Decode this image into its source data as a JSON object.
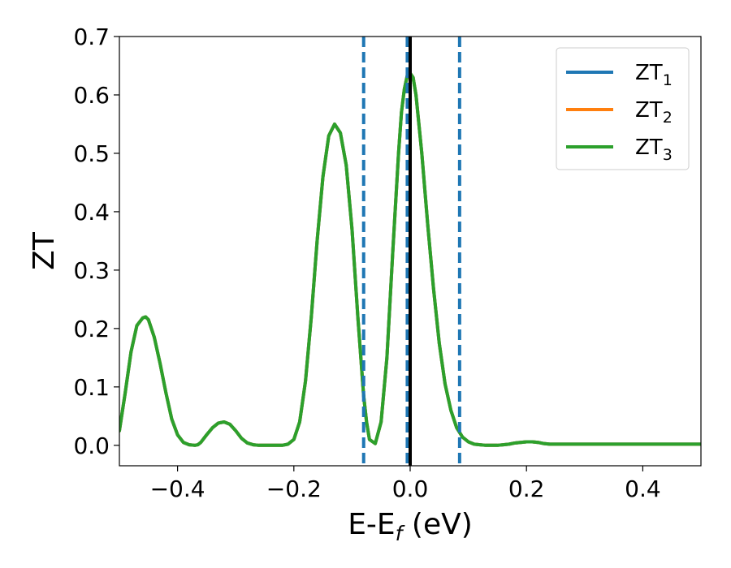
{
  "chart_data": {
    "type": "line",
    "xlabel": "E-E",
    "xlabel_sub": "f",
    "xlabel_unit": " (eV)",
    "ylabel": "ZT",
    "xlim": [
      -0.5,
      0.5
    ],
    "ylim": [
      -0.035,
      0.7
    ],
    "xticks": [
      -0.4,
      -0.2,
      0.0,
      0.2,
      0.4
    ],
    "xtick_labels": [
      "−0.4",
      "−0.2",
      "0.0",
      "0.2",
      "0.4"
    ],
    "yticks": [
      0.0,
      0.1,
      0.2,
      0.3,
      0.4,
      0.5,
      0.6,
      0.7
    ],
    "ytick_labels": [
      "0.0",
      "0.1",
      "0.2",
      "0.3",
      "0.4",
      "0.5",
      "0.6",
      "0.7"
    ],
    "grid": false,
    "legend_position": "top-right",
    "series": [
      {
        "name": "ZT",
        "sub": "1",
        "color": "#1f77b4"
      },
      {
        "name": "ZT",
        "sub": "2",
        "color": "#ff7f0e"
      },
      {
        "name": "ZT",
        "sub": "3",
        "color": "#2ca02c"
      }
    ],
    "curve": {
      "x": [
        -0.5,
        -0.49,
        -0.48,
        -0.47,
        -0.46,
        -0.455,
        -0.45,
        -0.44,
        -0.43,
        -0.42,
        -0.41,
        -0.4,
        -0.39,
        -0.38,
        -0.37,
        -0.365,
        -0.36,
        -0.35,
        -0.34,
        -0.33,
        -0.32,
        -0.31,
        -0.3,
        -0.29,
        -0.28,
        -0.27,
        -0.26,
        -0.25,
        -0.24,
        -0.23,
        -0.22,
        -0.21,
        -0.2,
        -0.19,
        -0.18,
        -0.17,
        -0.16,
        -0.15,
        -0.14,
        -0.13,
        -0.12,
        -0.11,
        -0.1,
        -0.09,
        -0.08,
        -0.075,
        -0.07,
        -0.06,
        -0.05,
        -0.04,
        -0.03,
        -0.02,
        -0.015,
        -0.01,
        -0.005,
        0.0,
        0.005,
        0.01,
        0.02,
        0.03,
        0.04,
        0.05,
        0.055,
        0.06,
        0.07,
        0.08,
        0.09,
        0.1,
        0.11,
        0.12,
        0.13,
        0.14,
        0.15,
        0.16,
        0.17,
        0.18,
        0.19,
        0.2,
        0.21,
        0.22,
        0.23,
        0.24,
        0.26,
        0.28,
        0.3,
        0.32,
        0.33,
        0.34,
        0.36,
        0.38,
        0.4,
        0.42,
        0.44,
        0.46,
        0.48,
        0.5
      ],
      "y": [
        0.025,
        0.09,
        0.16,
        0.205,
        0.218,
        0.22,
        0.215,
        0.185,
        0.14,
        0.09,
        0.045,
        0.018,
        0.005,
        0.001,
        0.0,
        0.001,
        0.005,
        0.018,
        0.03,
        0.038,
        0.04,
        0.036,
        0.025,
        0.012,
        0.004,
        0.001,
        0.0,
        0.0,
        0.0,
        0.0,
        0.0,
        0.002,
        0.01,
        0.04,
        0.11,
        0.22,
        0.35,
        0.46,
        0.53,
        0.55,
        0.535,
        0.48,
        0.37,
        0.22,
        0.085,
        0.04,
        0.01,
        0.003,
        0.04,
        0.15,
        0.33,
        0.5,
        0.57,
        0.61,
        0.633,
        0.637,
        0.63,
        0.6,
        0.5,
        0.38,
        0.27,
        0.175,
        0.14,
        0.105,
        0.06,
        0.03,
        0.014,
        0.006,
        0.002,
        0.001,
        0.0,
        0.0,
        0.0,
        0.001,
        0.002,
        0.004,
        0.005,
        0.006,
        0.006,
        0.005,
        0.003,
        0.002,
        0.002,
        0.002,
        0.002,
        0.002,
        0.002,
        0.002,
        0.002,
        0.002,
        0.002,
        0.002,
        0.002,
        0.002,
        0.002,
        0.002
      ]
    },
    "vlines_dashed": [
      -0.08,
      -0.005,
      0.085
    ],
    "vline_solid": 0.0,
    "dashed_color": "#1f77b4",
    "solid_color": "#000000"
  }
}
